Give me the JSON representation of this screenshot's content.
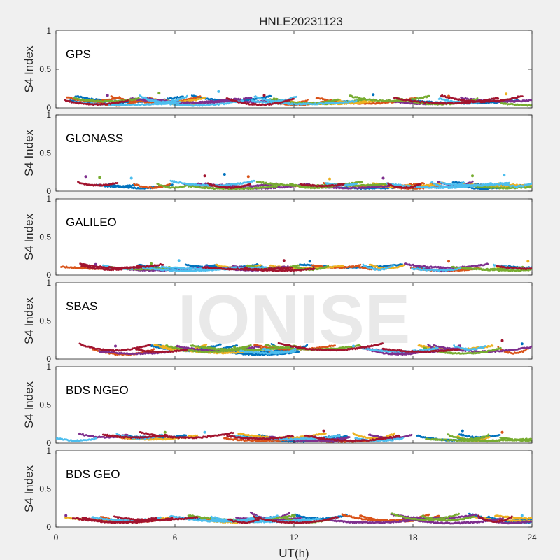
{
  "figure": {
    "title": "HNLE20231123",
    "watermark": "IONISE",
    "xlabel": "UT(h)",
    "background": "#f0f0f0"
  },
  "chart_data": {
    "type": "scatter",
    "title": "HNLE20231123",
    "xlabel": "UT(h)",
    "ylabel": "S4 Index",
    "xlim": [
      0,
      24
    ],
    "ylim": [
      0,
      1
    ],
    "x_ticks": [
      "0",
      "6",
      "12",
      "18",
      "24"
    ],
    "y_ticks": [
      "0",
      "0.5",
      "1"
    ],
    "grid": false,
    "series_colors": [
      "#0072BD",
      "#D95319",
      "#EDB120",
      "#7E2F8E",
      "#77AC30",
      "#4DBEEE",
      "#A2142F"
    ],
    "panels": [
      {
        "name": "GPS",
        "baseline_range": [
          0.03,
          0.12
        ],
        "notable_points": [
          {
            "x": 2.6,
            "y": 0.16
          },
          {
            "x": 5.2,
            "y": 0.19
          },
          {
            "x": 8.2,
            "y": 0.21
          },
          {
            "x": 10.5,
            "y": 0.16
          },
          {
            "x": 16.0,
            "y": 0.17
          },
          {
            "x": 19.8,
            "y": 0.15
          },
          {
            "x": 22.7,
            "y": 0.18
          }
        ]
      },
      {
        "name": "GLONASS",
        "baseline_range": [
          0.03,
          0.1
        ],
        "notable_points": [
          {
            "x": 1.5,
            "y": 0.19
          },
          {
            "x": 2.2,
            "y": 0.18
          },
          {
            "x": 3.8,
            "y": 0.17
          },
          {
            "x": 7.5,
            "y": 0.2
          },
          {
            "x": 8.5,
            "y": 0.22
          },
          {
            "x": 9.7,
            "y": 0.19
          },
          {
            "x": 13.8,
            "y": 0.16
          },
          {
            "x": 16.5,
            "y": 0.17
          },
          {
            "x": 21.0,
            "y": 0.2
          },
          {
            "x": 22.6,
            "y": 0.21
          }
        ]
      },
      {
        "name": "GALILEO",
        "baseline_range": [
          0.05,
          0.12
        ],
        "notable_points": [
          {
            "x": 2.0,
            "y": 0.14
          },
          {
            "x": 4.8,
            "y": 0.15
          },
          {
            "x": 6.2,
            "y": 0.19
          },
          {
            "x": 11.5,
            "y": 0.19
          },
          {
            "x": 12.8,
            "y": 0.18
          },
          {
            "x": 19.8,
            "y": 0.18
          },
          {
            "x": 23.8,
            "y": 0.18
          }
        ]
      },
      {
        "name": "SBAS",
        "baseline_range": [
          0.06,
          0.16
        ],
        "notable_points": [
          {
            "x": 3.0,
            "y": 0.17
          },
          {
            "x": 9.0,
            "y": 0.16
          },
          {
            "x": 15.0,
            "y": 0.17
          },
          {
            "x": 22.5,
            "y": 0.24
          },
          {
            "x": 23.5,
            "y": 0.2
          }
        ]
      },
      {
        "name": "BDS NGEO",
        "baseline_range": [
          0.02,
          0.1
        ],
        "notable_points": [
          {
            "x": 1.2,
            "y": 0.12
          },
          {
            "x": 5.5,
            "y": 0.14
          },
          {
            "x": 7.5,
            "y": 0.14
          },
          {
            "x": 13.5,
            "y": 0.16
          },
          {
            "x": 20.5,
            "y": 0.16
          },
          {
            "x": 22.5,
            "y": 0.14
          }
        ]
      },
      {
        "name": "BDS GEO",
        "baseline_range": [
          0.05,
          0.15
        ],
        "notable_points": [
          {
            "x": 0.5,
            "y": 0.15
          },
          {
            "x": 12.0,
            "y": 0.14
          },
          {
            "x": 23.5,
            "y": 0.15
          }
        ]
      }
    ]
  }
}
